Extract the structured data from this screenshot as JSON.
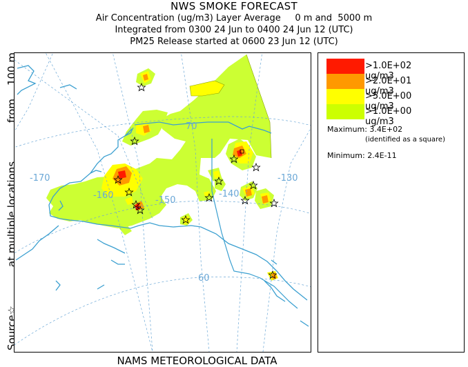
{
  "header": {
    "title": "NWS SMOKE FORECAST",
    "line2": "Air Concentration (ug/m3) Layer Average     0 m and  5000 m",
    "line3": "Integrated from 0300 24 Jun to 0400 24 Jun 12 (UTC)",
    "line4": "PM25 Release started at 0600 23 Jun 12 (UTC)"
  },
  "y_axis_label": {
    "part1": "Source☆",
    "part2": "at multiple locations",
    "part3": "from    100 m"
  },
  "x_axis_label": "NAMS METEOROLOGICAL DATA",
  "map": {
    "graticule_labels": {
      "lon_170": "-170",
      "lon_160": "-160",
      "lon_150": "-150",
      "lon_140": "-140",
      "lon_130": "-130",
      "lat_70": "70",
      "lat_60": "60"
    },
    "colors": {
      "graticule": "#6aa7d6",
      "coastline": "#3a9fd0",
      "boundary": "#3a9fd0"
    }
  },
  "legend": {
    "items": [
      {
        "label": ">1.0E+02 ug/m3",
        "color": "#ff1a00"
      },
      {
        "label": ">2.0E+01 ug/m3",
        "color": "#ff9900"
      },
      {
        "label": ">5.0E+00 ug/m3",
        "color": "#ffff00"
      },
      {
        "label": ">1.0E+00 ug/m3",
        "color": "#ccff00"
      }
    ],
    "maximum_label": "Maximum:",
    "maximum_value": "3.4E+02",
    "maximum_note": "(identified as a square)",
    "minimum_label": "Minimum:",
    "minimum_value": "2.4E-11"
  }
}
